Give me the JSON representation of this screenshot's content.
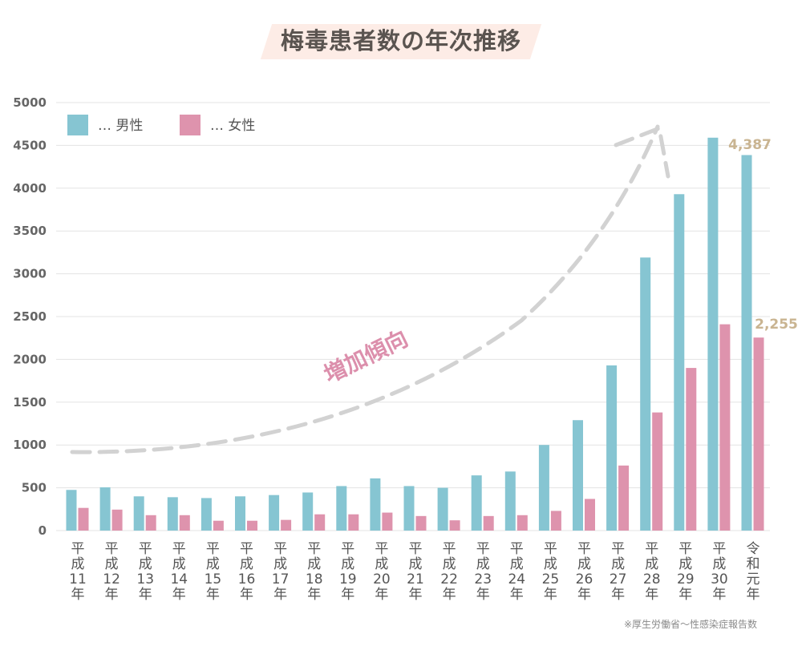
{
  "title": "梅毒患者数の年次推移",
  "source": "※厚生労働省〜性感染症報告数",
  "colors": {
    "male": "#86c5d2",
    "female": "#de93ad",
    "grid": "#e3e3e3",
    "annotation": "#dc8fac",
    "data_label": "#c9b491",
    "trend_line": "#d2d2d2"
  },
  "chart_data": {
    "type": "bar",
    "title": "梅毒患者数の年次推移",
    "categories": [
      "平成11年",
      "平成12年",
      "平成13年",
      "平成14年",
      "平成15年",
      "平成16年",
      "平成17年",
      "平成18年",
      "平成19年",
      "平成20年",
      "平成21年",
      "平成22年",
      "平成23年",
      "平成24年",
      "平成25年",
      "平成26年",
      "平成27年",
      "平成28年",
      "平成29年",
      "平成30年",
      "令和元年"
    ],
    "category_lines": [
      [
        "平",
        "成",
        "11",
        "年"
      ],
      [
        "平",
        "成",
        "12",
        "年"
      ],
      [
        "平",
        "成",
        "13",
        "年"
      ],
      [
        "平",
        "成",
        "14",
        "年"
      ],
      [
        "平",
        "成",
        "15",
        "年"
      ],
      [
        "平",
        "成",
        "16",
        "年"
      ],
      [
        "平",
        "成",
        "17",
        "年"
      ],
      [
        "平",
        "成",
        "18",
        "年"
      ],
      [
        "平",
        "成",
        "19",
        "年"
      ],
      [
        "平",
        "成",
        "20",
        "年"
      ],
      [
        "平",
        "成",
        "21",
        "年"
      ],
      [
        "平",
        "成",
        "22",
        "年"
      ],
      [
        "平",
        "成",
        "23",
        "年"
      ],
      [
        "平",
        "成",
        "24",
        "年"
      ],
      [
        "平",
        "成",
        "25",
        "年"
      ],
      [
        "平",
        "成",
        "26",
        "年"
      ],
      [
        "平",
        "成",
        "27",
        "年"
      ],
      [
        "平",
        "成",
        "28",
        "年"
      ],
      [
        "平",
        "成",
        "29",
        "年"
      ],
      [
        "平",
        "成",
        "30",
        "年"
      ],
      [
        "令",
        "和",
        "元",
        "年"
      ]
    ],
    "series": [
      {
        "name": "… 男性",
        "color": "#86c5d2",
        "values": [
          475,
          505,
          400,
          390,
          380,
          400,
          415,
          445,
          520,
          610,
          520,
          500,
          645,
          690,
          1000,
          1290,
          1930,
          3190,
          3930,
          4590,
          4387
        ]
      },
      {
        "name": "… 女性",
        "color": "#de93ad",
        "values": [
          265,
          245,
          180,
          180,
          115,
          115,
          125,
          190,
          190,
          210,
          170,
          120,
          170,
          180,
          230,
          370,
          760,
          1380,
          1900,
          2410,
          2255
        ]
      }
    ],
    "ylim": [
      0,
      5000
    ],
    "yticks": [
      0,
      500,
      1000,
      1500,
      2000,
      2500,
      3000,
      3500,
      4000,
      4500,
      5000
    ],
    "grid": true,
    "legend_position": "top-left",
    "data_labels": [
      {
        "series": 0,
        "category": "令和元年",
        "text": "4,387"
      },
      {
        "series": 1,
        "category": "令和元年",
        "text": "2,255"
      }
    ],
    "annotation": "増加傾向"
  }
}
